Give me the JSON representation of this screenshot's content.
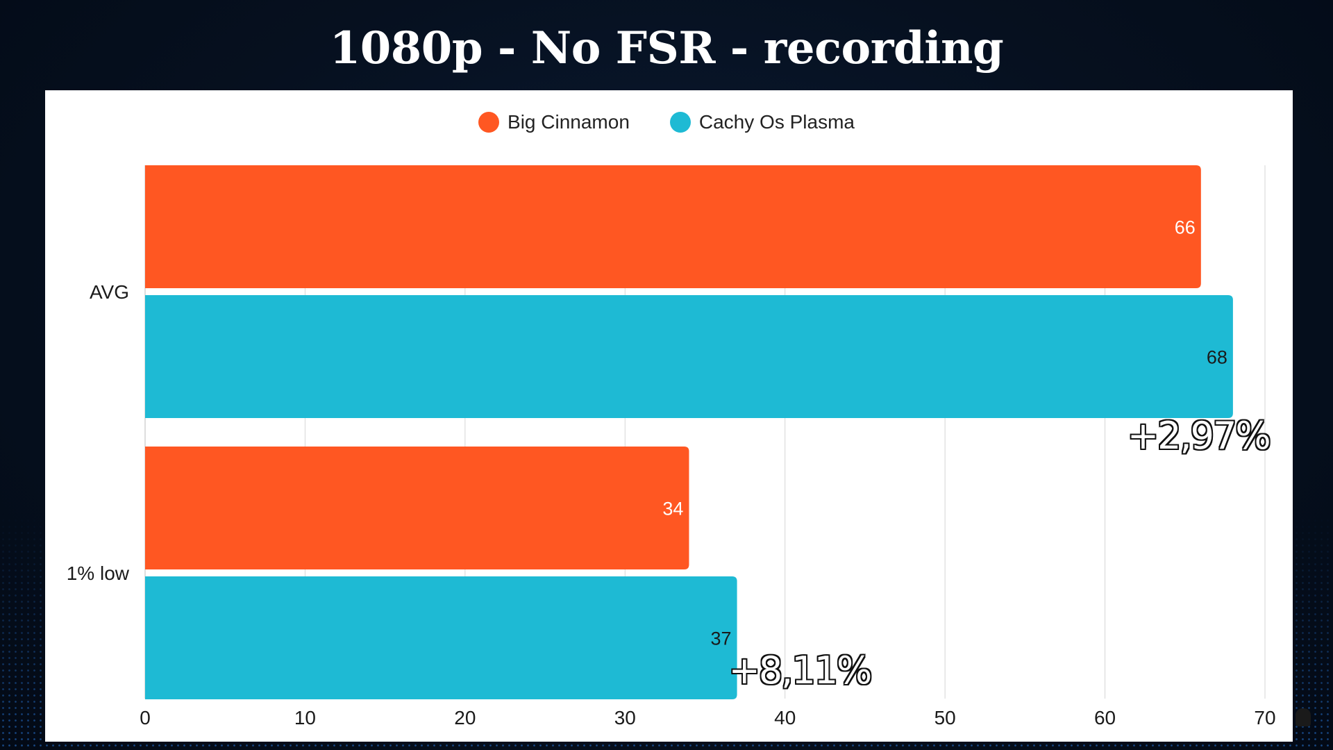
{
  "title": "1080p - No FSR - recording",
  "legend": [
    {
      "label": "Big Cinnamon",
      "color": "#FF5722"
    },
    {
      "label": "Cachy Os Plasma",
      "color": "#1EBAD4"
    }
  ],
  "annotations": [
    {
      "text": "+2,97%",
      "category": "AVG"
    },
    {
      "text": "+8,11%",
      "category": "1% low"
    }
  ],
  "chart_data": {
    "type": "bar",
    "orientation": "horizontal",
    "categories": [
      "AVG",
      "1% low"
    ],
    "series": [
      {
        "name": "Big Cinnamon",
        "color": "#FF5722",
        "values": [
          66,
          34
        ]
      },
      {
        "name": "Cachy Os Plasma",
        "color": "#1EBAD4",
        "values": [
          68,
          37
        ]
      }
    ],
    "xlim": [
      0,
      70
    ],
    "xticks": [
      0,
      10,
      20,
      30,
      40,
      50,
      60,
      70
    ],
    "grid": true,
    "legend_position": "top-center"
  }
}
